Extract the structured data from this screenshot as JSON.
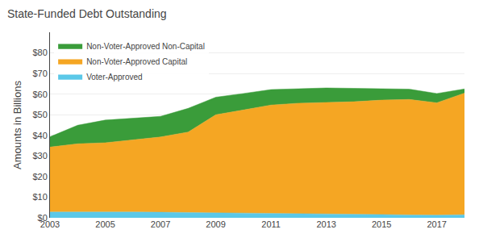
{
  "chart_data": {
    "type": "area",
    "stacked": true,
    "title": "State-Funded Debt Outstanding",
    "ylabel": "Amounts in Billions",
    "x": [
      2003,
      2004,
      2005,
      2006,
      2007,
      2008,
      2009,
      2010,
      2011,
      2012,
      2013,
      2014,
      2015,
      2016,
      2017,
      2018
    ],
    "series": [
      {
        "name": "Voter-Approved",
        "color": "#5bc8e8",
        "values": [
          2.8,
          2.9,
          2.9,
          2.8,
          2.7,
          2.6,
          2.5,
          2.3,
          2.2,
          2.1,
          2.0,
          1.8,
          1.6,
          1.4,
          1.3,
          1.5
        ]
      },
      {
        "name": "Non-Voter-Approved Capital",
        "color": "#f5a623",
        "values": [
          31.5,
          33.0,
          33.5,
          35.0,
          36.5,
          39.0,
          47.5,
          50.0,
          52.5,
          53.5,
          54.0,
          54.5,
          55.5,
          56.0,
          54.5,
          59.0
        ]
      },
      {
        "name": "Non-Voter-Approved Non-Capital",
        "color": "#3a9c3a",
        "values": [
          5.0,
          9.0,
          11.0,
          10.5,
          10.0,
          11.5,
          8.5,
          8.0,
          7.5,
          7.0,
          7.0,
          6.5,
          5.5,
          5.0,
          4.5,
          2.0
        ]
      }
    ],
    "xlim": [
      2003,
      2018
    ],
    "xticks": [
      2003,
      2005,
      2007,
      2009,
      2011,
      2013,
      2015,
      2017
    ],
    "ylim": [
      0,
      90
    ],
    "yticks": [
      {
        "value": 0,
        "label": "$0"
      },
      {
        "value": 10,
        "label": "$10"
      },
      {
        "value": 20,
        "label": "$20"
      },
      {
        "value": 30,
        "label": "$30"
      },
      {
        "value": 40,
        "label": "$40"
      },
      {
        "value": 50,
        "label": "$50"
      },
      {
        "value": 60,
        "label": "$60"
      },
      {
        "value": 70,
        "label": "$70"
      },
      {
        "value": 80,
        "label": "$80"
      }
    ],
    "grid": true,
    "legend": "top left"
  }
}
